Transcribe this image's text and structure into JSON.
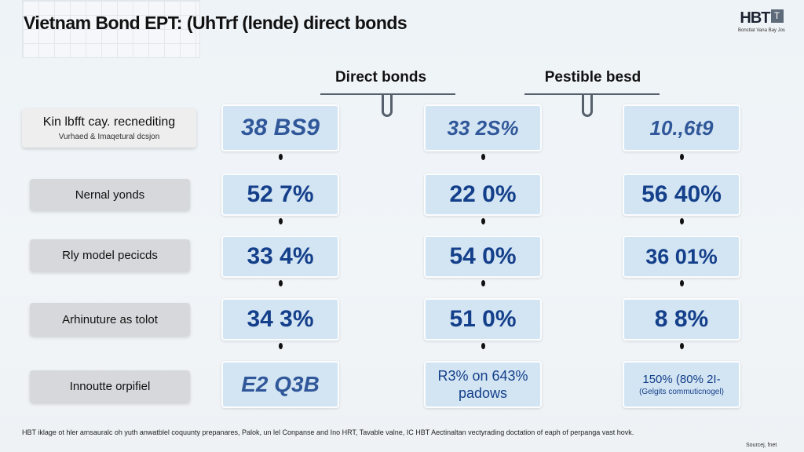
{
  "title": "Vietnam Bond EPT: (UhTrf (lende) direct bonds",
  "logo": {
    "text": "HBT",
    "icon": "T",
    "subtitle": "Bonstlat Vana Bay Jos"
  },
  "columns": [
    {
      "header": "Direct bonds"
    },
    {
      "header": "Pestible besd"
    }
  ],
  "rows": [
    {
      "label": "Kin lbfft cay. recnediting",
      "sublabel": "Vurhaed & Imaqetural dcsjon",
      "values": [
        "38 BS9",
        "33 2S%",
        "10.,6t9"
      ]
    },
    {
      "label": "Nernal yonds",
      "values": [
        "52 7%",
        "22 0%",
        "56 40%"
      ]
    },
    {
      "label": "Rly model pecicds",
      "values": [
        "33 4%",
        "54 0%",
        "36 01%"
      ]
    },
    {
      "label": "Arhinuture as tolot",
      "values": [
        "34 3%",
        "51 0%",
        "8 8%"
      ]
    },
    {
      "label": "Innoutte orpifiel",
      "values": [
        "E2 Q3B",
        "R3% on 643% padows",
        "150% (80% 2I-"
      ],
      "value_subs": [
        "",
        "",
        "(Gelgits commuticnogel)"
      ]
    }
  ],
  "footer": "HBT iklage ot hler amsauralc oh yuth anwatblel coquunty prepanares, Palok, un lel Conpanse and Ino HRT, Tavable valne, IC HBT Aectinaltan vectyrading doctation of eaph of perpanga vast hovk.",
  "source": "Sourcej, fnet",
  "colors": {
    "value_text": "#143f8a",
    "value_bg": "#d3e5f3",
    "label_bg": "#d6d8db",
    "background": "#eef3f7"
  }
}
